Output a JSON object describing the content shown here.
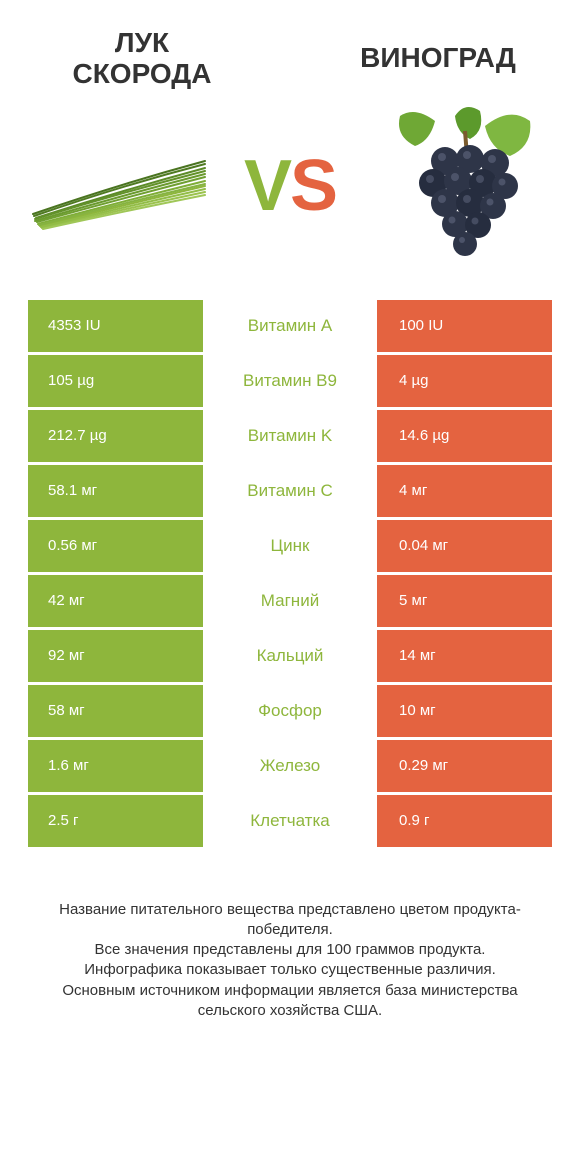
{
  "colors": {
    "left": "#8eb63c",
    "right": "#e46340",
    "rowBg": "#ffffff",
    "midText": "#8eb63c",
    "titleText": "#333333",
    "footerText": "#333333",
    "cellText": "#ffffff"
  },
  "leftTitle": "ЛУК СКОРОДА",
  "rightTitle": "ВИНОГРАД",
  "vs": {
    "v": "V",
    "s": "S"
  },
  "rows": [
    {
      "label": "Витамин A",
      "left": "4353 IU",
      "right": "100 IU",
      "winner": "left"
    },
    {
      "label": "Витамин B9",
      "left": "105 µg",
      "right": "4 µg",
      "winner": "left"
    },
    {
      "label": "Витамин K",
      "left": "212.7 µg",
      "right": "14.6 µg",
      "winner": "left"
    },
    {
      "label": "Витамин C",
      "left": "58.1 мг",
      "right": "4 мг",
      "winner": "left"
    },
    {
      "label": "Цинк",
      "left": "0.56 мг",
      "right": "0.04 мг",
      "winner": "left"
    },
    {
      "label": "Магний",
      "left": "42 мг",
      "right": "5 мг",
      "winner": "left"
    },
    {
      "label": "Кальций",
      "left": "92 мг",
      "right": "14 мг",
      "winner": "left"
    },
    {
      "label": "Фосфор",
      "left": "58 мг",
      "right": "10 мг",
      "winner": "left"
    },
    {
      "label": "Железо",
      "left": "1.6 мг",
      "right": "0.29 мг",
      "winner": "left"
    },
    {
      "label": "Клетчатка",
      "left": "2.5 г",
      "right": "0.9 г",
      "winner": "left"
    }
  ],
  "footer": "Название питательного вещества представлено цветом продукта-победителя.\nВсе значения представлены для 100 граммов продукта.\nИнфографика показывает только существенные различия.\nОсновным источником информации является база министерства сельского хозяйства США."
}
